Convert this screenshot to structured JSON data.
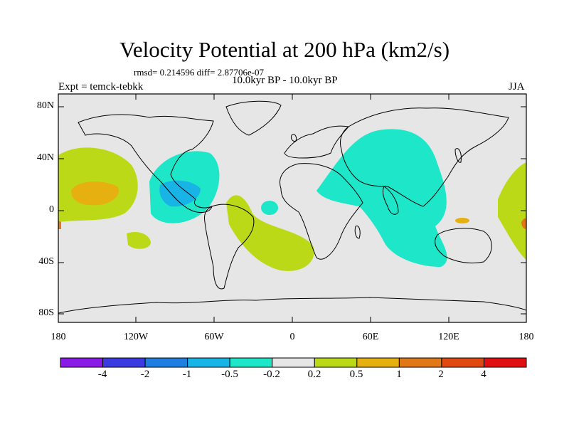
{
  "title": "Velocity Potential at 200 hPa (km2/s)",
  "stats": "rmsd= 0.214596 diff= 2.87706e-07",
  "period": "10.0kyr BP - 10.0kyr BP",
  "experiment": "Expt = temck-tebkk",
  "season": "JJA",
  "lat_labels": [
    "80N",
    "40N",
    "0",
    "40S",
    "80S"
  ],
  "lon_labels": [
    "180",
    "120W",
    "60W",
    "0",
    "60E",
    "120E",
    "180"
  ],
  "colorbar": {
    "labels": [
      "-4",
      "-2",
      "-1",
      "-0.5",
      "-0.2",
      "0.2",
      "0.5",
      "1",
      "2",
      "4"
    ],
    "colors": [
      "#8a1ae6",
      "#3b3be0",
      "#1f7fe0",
      "#19b4e6",
      "#1ee6c8",
      "#e6e6e6",
      "#bcd918",
      "#e6b010",
      "#e07818",
      "#e04a10",
      "#e01010"
    ]
  },
  "fill_colors": {
    "neutral": "#e6e6e6",
    "neg_weak": "#1ee6c8",
    "neg_mid": "#19b4e6",
    "pos_weak": "#bcd918",
    "pos_mid": "#e6b010",
    "pos_strong": "#e07818"
  }
}
